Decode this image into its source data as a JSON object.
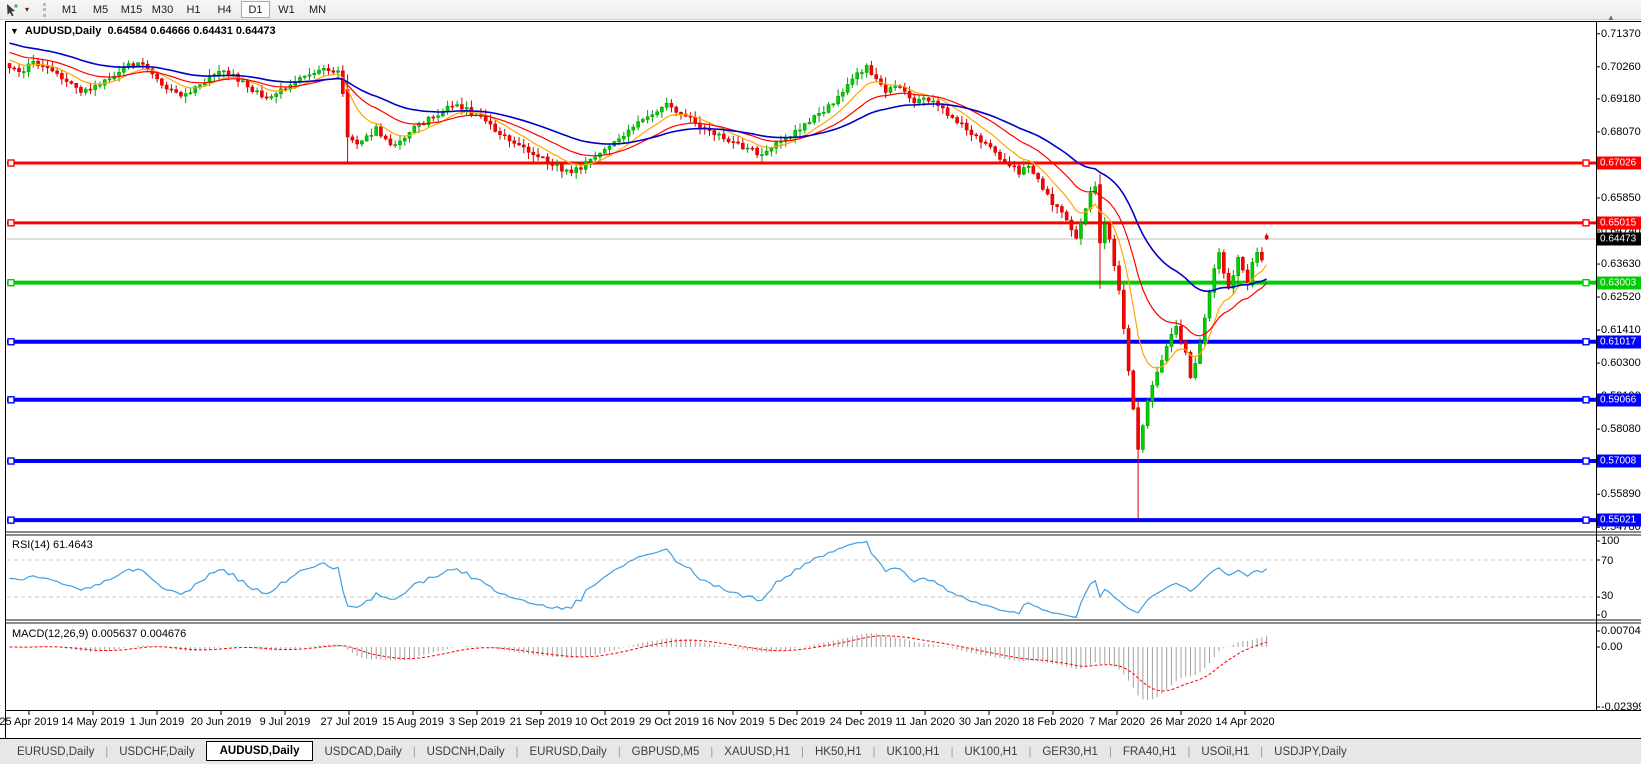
{
  "toolbar": {
    "cursor_tool": "cursor-tool",
    "timeframes": [
      "M1",
      "M5",
      "M15",
      "M30",
      "H1",
      "H4",
      "D1",
      "W1",
      "MN"
    ],
    "active_timeframe": "D1"
  },
  "chart": {
    "symbol": "AUDUSD,Daily",
    "ohlc_text": "0.64584 0.64666 0.64431 0.64473",
    "dropdown_glyph": "▼",
    "shift_marker_glyph": "▲"
  },
  "rsi": {
    "label": "RSI(14) 61.4643",
    "axis_labels": [
      "100",
      "70",
      "30",
      "0"
    ]
  },
  "macd": {
    "label": "MACD(12,26,9) 0.005637 0.004676",
    "axis_top": "0.007048",
    "axis_zero": "0.00",
    "axis_bottom": "-0.023998"
  },
  "price_axis": {
    "ticks": [
      "0.71370",
      "0.70260",
      "0.69180",
      "0.68070",
      "0.66960",
      "0.65850",
      "0.64740",
      "0.63630",
      "0.62520",
      "0.61410",
      "0.60300",
      "0.59190",
      "0.58080",
      "0.56970",
      "0.55890",
      "0.54780"
    ],
    "current_price_chip": {
      "text": "0.64473",
      "bg": "#000000"
    }
  },
  "date_axis": {
    "labels": [
      "25 Apr 2019",
      "14 May 2019",
      "1 Jun 2019",
      "20 Jun 2019",
      "9 Jul 2019",
      "27 Jul 2019",
      "15 Aug 2019",
      "3 Sep 2019",
      "21 Sep 2019",
      "10 Oct 2019",
      "29 Oct 2019",
      "16 Nov 2019",
      "5 Dec 2019",
      "24 Dec 2019",
      "11 Jan 2020",
      "30 Jan 2020",
      "18 Feb 2020",
      "7 Mar 2020",
      "26 Mar 2020",
      "14 Apr 2020"
    ]
  },
  "tabs": {
    "items": [
      "EURUSD,Daily",
      "USDCHF,Daily",
      "AUDUSD,Daily",
      "USDCAD,Daily",
      "USDCNH,Daily",
      "EURUSD,Daily",
      "GBPUSD,M5",
      "XAUUSD,H1",
      "HK50,H1",
      "UK100,H1",
      "UK100,H1",
      "GER30,H1",
      "FRA40,H1",
      "USOil,H1",
      "USDJPY,Daily"
    ],
    "active_index": 2
  },
  "colors": {
    "candle_up_fill": "#00CF00",
    "candle_up_stroke": "#009E00",
    "candle_down_fill": "#FF0000",
    "candle_down_stroke": "#CC0000",
    "ma_fast": "#FFA500",
    "ma_mid": "#FF0000",
    "ma_slow": "#0000C8",
    "level_red": "#FF0000",
    "level_green": "#00CC00",
    "level_blue": "#0000FF",
    "current_price_line": "#C0C0C0",
    "rsi_line": "#3E9FE0",
    "rsi_levels": "#C8C8C8",
    "macd_hist": "#A0A0A0",
    "macd_signal": "#FF0000"
  },
  "chart_data": {
    "type": "candlestick",
    "symbol": "AUDUSD",
    "timeframe": "Daily",
    "current_bar": {
      "open": 0.64584,
      "high": 0.64666,
      "low": 0.64431,
      "close": 0.64473
    },
    "bars": 265,
    "y_axis_ticks": [
      0.7137,
      0.7026,
      0.6918,
      0.6807,
      0.6696,
      0.6585,
      0.6474,
      0.6363,
      0.6252,
      0.6141,
      0.603,
      0.5919,
      0.5808,
      0.5697,
      0.5589,
      0.5478
    ],
    "x_tick_dates": [
      "25 Apr 2019",
      "14 May 2019",
      "1 Jun 2019",
      "20 Jun 2019",
      "9 Jul 2019",
      "27 Jul 2019",
      "15 Aug 2019",
      "3 Sep 2019",
      "21 Sep 2019",
      "10 Oct 2019",
      "29 Oct 2019",
      "16 Nov 2019",
      "5 Dec 2019",
      "24 Dec 2019",
      "11 Jan 2020",
      "30 Jan 2020",
      "18 Feb 2020",
      "7 Mar 2020",
      "26 Mar 2020",
      "14 Apr 2020"
    ],
    "close_anchors": [
      [
        0,
        0.703
      ],
      [
        2,
        0.7002
      ],
      [
        5,
        0.7042
      ],
      [
        8,
        0.7015
      ],
      [
        12,
        0.698
      ],
      [
        15,
        0.6938
      ],
      [
        18,
        0.6962
      ],
      [
        21,
        0.699
      ],
      [
        24,
        0.7022
      ],
      [
        27,
        0.7042
      ],
      [
        30,
        0.7
      ],
      [
        33,
        0.6955
      ],
      [
        36,
        0.6922
      ],
      [
        39,
        0.6958
      ],
      [
        42,
        0.699
      ],
      [
        45,
        0.7015
      ],
      [
        48,
        0.6985
      ],
      [
        51,
        0.695
      ],
      [
        54,
        0.6918
      ],
      [
        57,
        0.6945
      ],
      [
        60,
        0.6975
      ],
      [
        63,
        0.7
      ],
      [
        66,
        0.7028
      ],
      [
        69,
        0.7005
      ],
      [
        70,
        0.6945
      ],
      [
        71,
        0.679
      ],
      [
        73,
        0.6762
      ],
      [
        75,
        0.679
      ],
      [
        77,
        0.6818
      ],
      [
        79,
        0.6782
      ],
      [
        81,
        0.6758
      ],
      [
        83,
        0.6785
      ],
      [
        85,
        0.6818
      ],
      [
        88,
        0.685
      ],
      [
        91,
        0.6878
      ],
      [
        94,
        0.69
      ],
      [
        97,
        0.6872
      ],
      [
        100,
        0.684
      ],
      [
        103,
        0.6802
      ],
      [
        106,
        0.6772
      ],
      [
        109,
        0.6745
      ],
      [
        112,
        0.672
      ],
      [
        115,
        0.6692
      ],
      [
        118,
        0.6668
      ],
      [
        120,
        0.669
      ],
      [
        123,
        0.6722
      ],
      [
        126,
        0.676
      ],
      [
        129,
        0.68
      ],
      [
        132,
        0.684
      ],
      [
        135,
        0.687
      ],
      [
        138,
        0.6895
      ],
      [
        141,
        0.6868
      ],
      [
        144,
        0.684
      ],
      [
        147,
        0.681
      ],
      [
        150,
        0.679
      ],
      [
        153,
        0.6765
      ],
      [
        156,
        0.6745
      ],
      [
        158,
        0.673
      ],
      [
        160,
        0.6755
      ],
      [
        163,
        0.679
      ],
      [
        166,
        0.682
      ],
      [
        169,
        0.6855
      ],
      [
        172,
        0.689
      ],
      [
        174,
        0.692
      ],
      [
        176,
        0.696
      ],
      [
        178,
        0.7
      ],
      [
        180,
        0.703
      ],
      [
        182,
        0.6985
      ],
      [
        184,
        0.694
      ],
      [
        186,
        0.6965
      ],
      [
        188,
        0.6935
      ],
      [
        190,
        0.6905
      ],
      [
        192,
        0.693
      ],
      [
        194,
        0.6905
      ],
      [
        196,
        0.688
      ],
      [
        198,
        0.6855
      ],
      [
        200,
        0.683
      ],
      [
        202,
        0.6805
      ],
      [
        204,
        0.678
      ],
      [
        206,
        0.675
      ],
      [
        208,
        0.6722
      ],
      [
        210,
        0.67
      ],
      [
        212,
        0.6672
      ],
      [
        214,
        0.6692
      ],
      [
        216,
        0.6645
      ],
      [
        218,
        0.6592
      ],
      [
        220,
        0.6548
      ],
      [
        222,
        0.6512
      ],
      [
        223,
        0.6475
      ],
      [
        224,
        0.6452
      ],
      [
        225,
        0.65
      ],
      [
        226,
        0.6545
      ],
      [
        227,
        0.66
      ],
      [
        228,
        0.663
      ],
      [
        229,
        0.6434
      ],
      [
        230,
        0.65
      ],
      [
        231,
        0.6442
      ],
      [
        232,
        0.6352
      ],
      [
        233,
        0.627
      ],
      [
        234,
        0.615
      ],
      [
        235,
        0.6
      ],
      [
        236,
        0.588
      ],
      [
        237,
        0.574
      ],
      [
        238,
        0.582
      ],
      [
        239,
        0.59
      ],
      [
        241,
        0.6
      ],
      [
        243,
        0.609
      ],
      [
        245,
        0.615
      ],
      [
        247,
        0.606
      ],
      [
        248,
        0.598
      ],
      [
        249,
        0.603
      ],
      [
        250,
        0.609
      ],
      [
        251,
        0.618
      ],
      [
        252,
        0.627
      ],
      [
        253,
        0.635
      ],
      [
        254,
        0.64
      ],
      [
        255,
        0.634
      ],
      [
        256,
        0.628
      ],
      [
        257,
        0.633
      ],
      [
        258,
        0.6385
      ],
      [
        259,
        0.634
      ],
      [
        260,
        0.63
      ],
      [
        261,
        0.636
      ],
      [
        262,
        0.641
      ],
      [
        263,
        0.638
      ],
      [
        264,
        0.64473
      ]
    ],
    "special_bars": {
      "71": [
        0.695,
        0.7,
        0.67,
        0.679
      ],
      "229": [
        0.663,
        0.6665,
        0.628,
        0.6434
      ],
      "237": [
        0.588,
        0.5905,
        0.5506,
        0.574
      ],
      "264": [
        0.64584,
        0.64666,
        0.64431,
        0.64473
      ]
    },
    "moving_averages": [
      {
        "name": "fast",
        "type": "EMA",
        "period": 9,
        "color": "#FFA500",
        "seed": 0.7055
      },
      {
        "name": "mid",
        "type": "EMA",
        "period": 20,
        "color": "#FF0000",
        "seed": 0.708
      },
      {
        "name": "slow",
        "type": "EMA",
        "period": 40,
        "color": "#0000C8",
        "seed": 0.711
      }
    ],
    "horizontal_levels": [
      {
        "price": 0.67026,
        "label": "0.67026",
        "color": "#FF0000",
        "width": 3
      },
      {
        "price": 0.65015,
        "label": "0.65015",
        "color": "#FF0000",
        "width": 3
      },
      {
        "price": 0.63003,
        "label": "0.63003",
        "color": "#00CC00",
        "width": 4
      },
      {
        "price": 0.61017,
        "label": "0.61017",
        "color": "#0000FF",
        "width": 4
      },
      {
        "price": 0.59066,
        "label": "0.59066",
        "color": "#0000FF",
        "width": 4
      },
      {
        "price": 0.57008,
        "label": "0.57008",
        "color": "#0000FF",
        "width": 4
      },
      {
        "price": 0.55021,
        "label": "0.55021",
        "color": "#0000FF",
        "width": 4
      }
    ],
    "current_price": 0.64473,
    "rsi": {
      "period": 14,
      "value": 61.4643,
      "overbought": 70,
      "oversold": 30,
      "scale": [
        0,
        100
      ]
    },
    "macd": {
      "fast": 12,
      "slow": 26,
      "signal": 9,
      "value": 0.005637,
      "signal_value": 0.004676,
      "scale_max": 0.007048,
      "scale_min": -0.023998
    }
  }
}
